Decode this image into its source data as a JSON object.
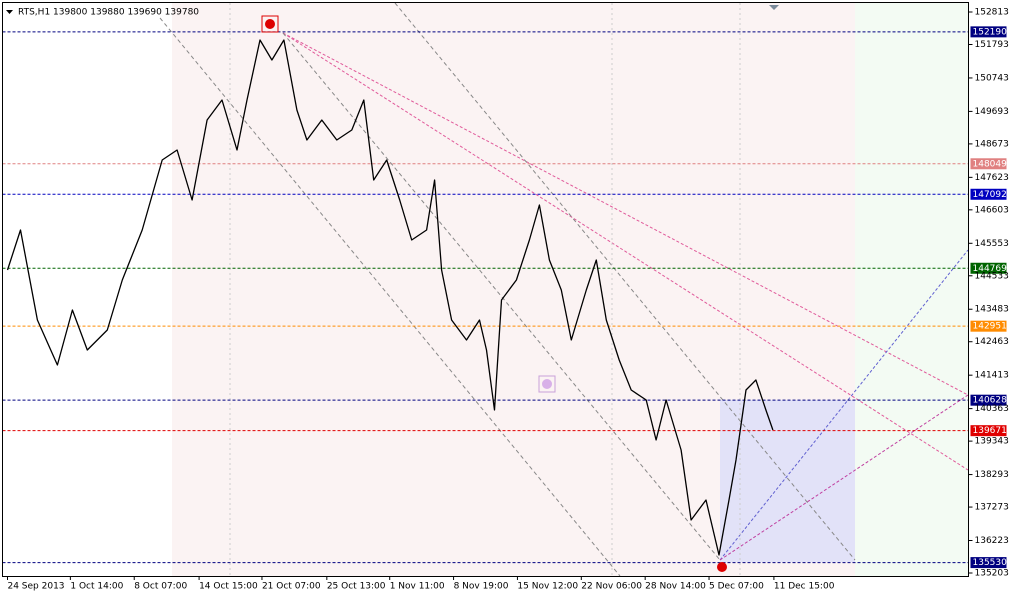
{
  "chart_data": {
    "type": "line",
    "title": "RTS,H1 139800 139880 139690 139780",
    "color": "#000000",
    "x": [
      5,
      18,
      35,
      55,
      70,
      85,
      105,
      120,
      140,
      160,
      175,
      190,
      205,
      220,
      235,
      245,
      258,
      270,
      282,
      295,
      305,
      320,
      335,
      350,
      362,
      372,
      385,
      398,
      410,
      425,
      433,
      440,
      450,
      465,
      478,
      485,
      493,
      500,
      515,
      528,
      538,
      548,
      560,
      570,
      585,
      595,
      605,
      618,
      630,
      645,
      655,
      665,
      680,
      690,
      705,
      718,
      728,
      735,
      745,
      755,
      765,
      772
    ],
    "values": [
      144715,
      145970,
      143145,
      141733,
      143460,
      142204,
      142832,
      144401,
      145970,
      148168,
      148481,
      146912,
      149423,
      150051,
      148481,
      150051,
      151934,
      151306,
      151934,
      149737,
      148795,
      149423,
      148795,
      149109,
      150051,
      147540,
      148168,
      146912,
      145656,
      145970,
      147540,
      144715,
      143145,
      142518,
      143145,
      142204,
      140320,
      143773,
      144401,
      145656,
      146755,
      145029,
      144087,
      142518,
      144087,
      145029,
      143145,
      141890,
      140948,
      140634,
      139378,
      140634,
      139064,
      136867,
      137495,
      135768,
      137495,
      138750,
      140948,
      141262,
      140320,
      139692
    ],
    "xlim": [
      0,
      968
    ],
    "ylim": [
      135109,
      153190
    ],
    "xticks": [
      {
        "value": 5,
        "label": "24 Sep 2013"
      },
      {
        "value": 68,
        "label": "1 Oct 14:00"
      },
      {
        "value": 132,
        "label": "8 Oct 07:00"
      },
      {
        "value": 197,
        "label": "14 Oct 15:00"
      },
      {
        "value": 260,
        "label": "21 Oct 07:00"
      },
      {
        "value": 325,
        "label": "25 Oct 13:00"
      },
      {
        "value": 388,
        "label": "1 Nov 11:00"
      },
      {
        "value": 452,
        "label": "8 Nov 19:00"
      },
      {
        "value": 516,
        "label": "15 Nov 12:00"
      },
      {
        "value": 580,
        "label": "22 Nov 06:00"
      },
      {
        "value": 644,
        "label": "28 Nov 14:00"
      },
      {
        "value": 708,
        "label": "5 Dec 07:00"
      },
      {
        "value": 773,
        "label": "11 Dec 15:00"
      }
    ],
    "yticks": [
      152813,
      151793,
      150743,
      149693,
      148673,
      147623,
      146603,
      145553,
      144533,
      143483,
      142463,
      141413,
      140363,
      139343,
      138293,
      137273,
      136223,
      135203
    ],
    "levels": [
      {
        "value": 152190,
        "color": "#000080"
      },
      {
        "value": 148049,
        "color": "#e08080"
      },
      {
        "value": 147092,
        "color": "#0000c0"
      },
      {
        "value": 144769,
        "color": "#006400"
      },
      {
        "value": 142951,
        "color": "#ff8c00"
      },
      {
        "value": 140628,
        "color": "#000080"
      },
      {
        "value": 139671,
        "color": "#e00000"
      },
      {
        "value": 135530,
        "color": "#000080"
      }
    ]
  }
}
